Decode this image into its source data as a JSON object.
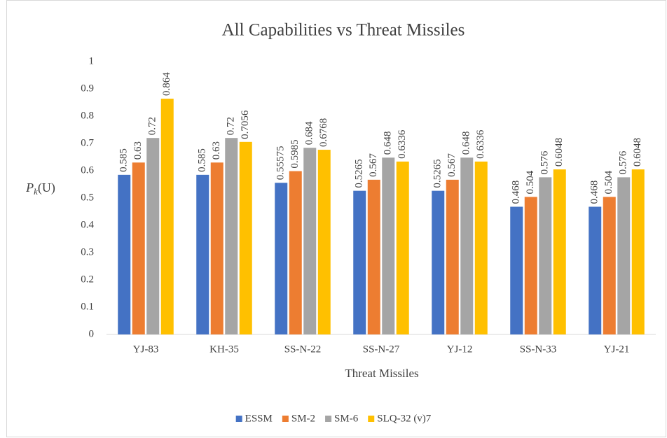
{
  "chart_data": {
    "type": "bar",
    "title": "All Capabilities vs Threat Missiles",
    "x_label": "Threat Missiles",
    "y_label": [
      "P",
      "k",
      "(U)"
    ],
    "categories": [
      "YJ-83",
      "KH-35",
      "SS-N-22",
      "SS-N-27",
      "YJ-12",
      "SS-N-33",
      "YJ-21"
    ],
    "series": [
      {
        "name": "ESSM",
        "color": "#4472c4",
        "values": [
          0.585,
          0.585,
          0.55575,
          0.5265,
          0.5265,
          0.468,
          0.468
        ]
      },
      {
        "name": "SM-2",
        "color": "#ed7d31",
        "values": [
          0.63,
          0.63,
          0.5985,
          0.567,
          0.567,
          0.504,
          0.504
        ]
      },
      {
        "name": "SM-6",
        "color": "#a5a5a5",
        "values": [
          0.72,
          0.72,
          0.684,
          0.648,
          0.648,
          0.576,
          0.576
        ]
      },
      {
        "name": "SLQ-32 (v)7",
        "color": "#ffc000",
        "values": [
          0.864,
          0.7056,
          0.6768,
          0.6336,
          0.6336,
          0.6048,
          0.6048
        ]
      }
    ],
    "ylim": [
      0,
      1
    ],
    "yticks": [
      0,
      0.1,
      0.2,
      0.3,
      0.4,
      0.5,
      0.6,
      0.7,
      0.8,
      0.9,
      1
    ],
    "grid": false,
    "legend": "bottom"
  }
}
